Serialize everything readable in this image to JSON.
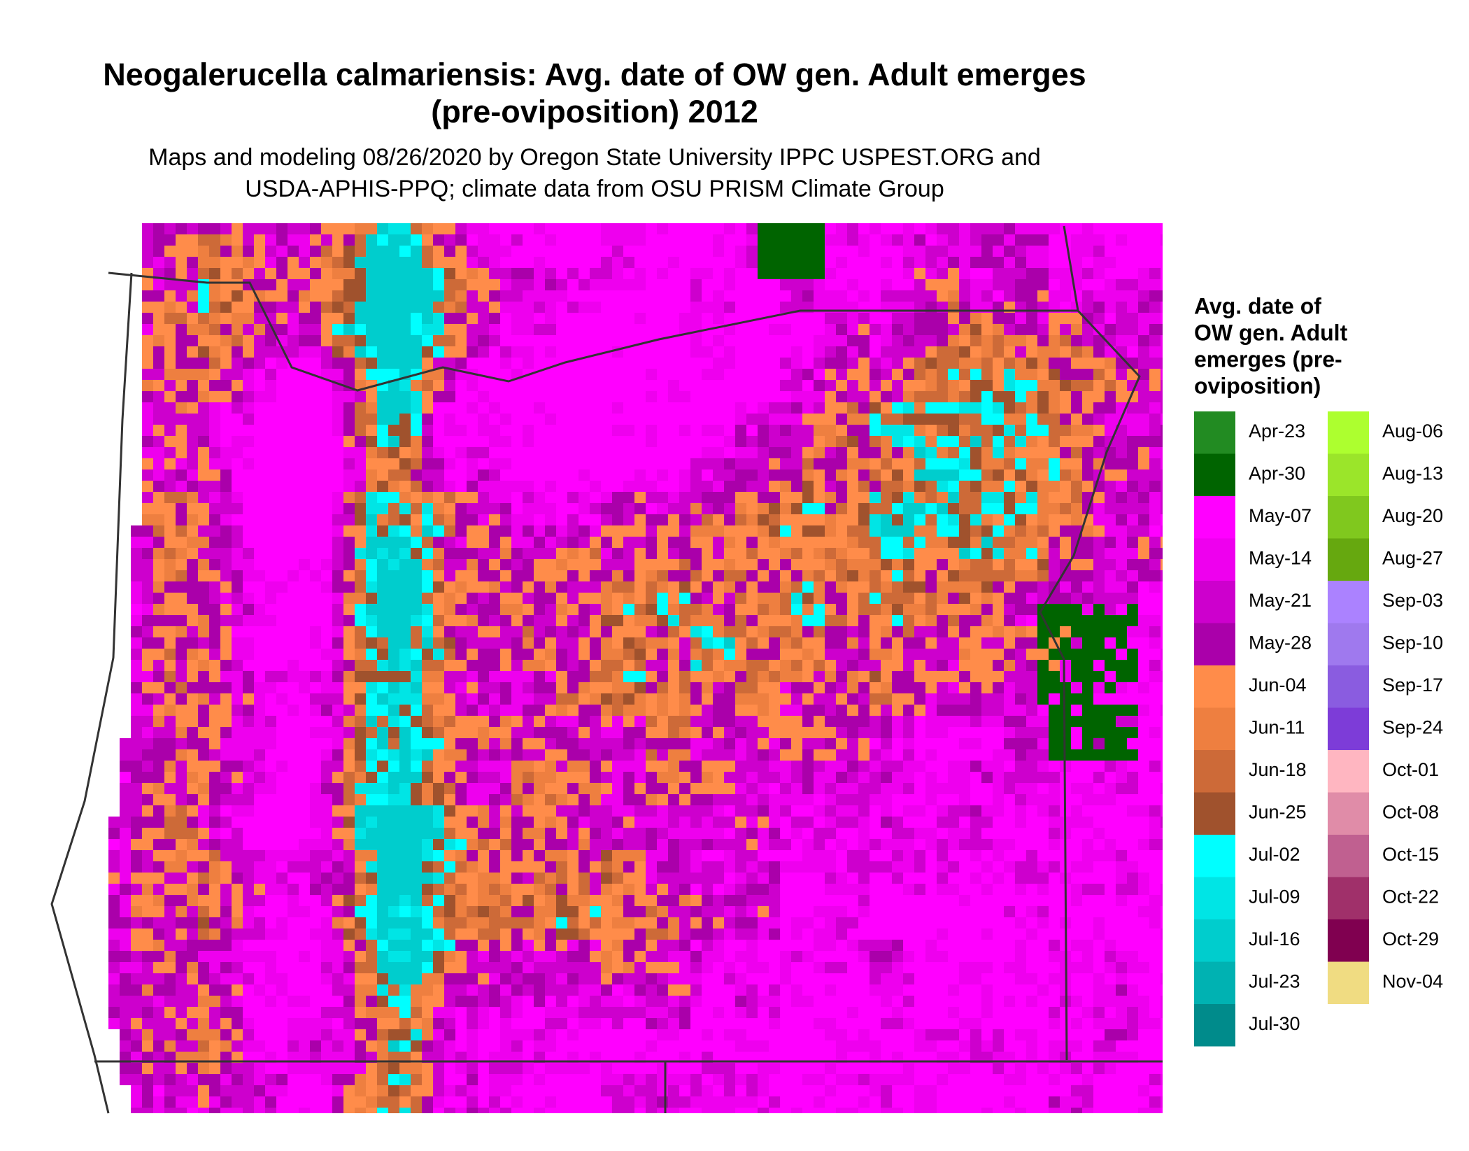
{
  "title": [
    "Neogalerucella calmariensis: Avg. date of OW gen. Adult emerges",
    "(pre-oviposition) 2012"
  ],
  "subtitle": [
    "Maps and modeling 08/26/2020 by Oregon State University IPPC USPEST.ORG and",
    "USDA-APHIS-PPQ; climate data from OSU PRISM Climate Group"
  ],
  "legend": {
    "title": [
      "Avg. date of",
      "OW gen. Adult",
      "emerges (pre-",
      "oviposition)"
    ],
    "items": [
      {
        "label": "Apr-23",
        "color": "#228b22"
      },
      {
        "label": "Apr-30",
        "color": "#006400"
      },
      {
        "label": "May-07",
        "color": "#ff00ff"
      },
      {
        "label": "May-14",
        "color": "#ee00ee"
      },
      {
        "label": "May-21",
        "color": "#cd00cd"
      },
      {
        "label": "May-28",
        "color": "#aa00aa"
      },
      {
        "label": "Jun-04",
        "color": "#ff8c4a"
      },
      {
        "label": "Jun-11",
        "color": "#ee7f40"
      },
      {
        "label": "Jun-18",
        "color": "#cd6a38"
      },
      {
        "label": "Jun-25",
        "color": "#a0522d"
      },
      {
        "label": "Jul-02",
        "color": "#00ffff"
      },
      {
        "label": "Jul-09",
        "color": "#00e5e5"
      },
      {
        "label": "Jul-16",
        "color": "#00cdcd"
      },
      {
        "label": "Jul-23",
        "color": "#00b2b2"
      },
      {
        "label": "Jul-30",
        "color": "#008b8b"
      },
      {
        "label": "Aug-06",
        "color": "#adff2f"
      },
      {
        "label": "Aug-13",
        "color": "#9be52a"
      },
      {
        "label": "Aug-20",
        "color": "#80c81e"
      },
      {
        "label": "Aug-27",
        "color": "#66a80f"
      },
      {
        "label": "Sep-03",
        "color": "#ab82ff"
      },
      {
        "label": "Sep-10",
        "color": "#9f79ee"
      },
      {
        "label": "Sep-17",
        "color": "#8a5ce0"
      },
      {
        "label": "Sep-24",
        "color": "#7d3cd8"
      },
      {
        "label": "Oct-01",
        "color": "#ffb6c1"
      },
      {
        "label": "Oct-08",
        "color": "#e08ca8"
      },
      {
        "label": "Oct-15",
        "color": "#c06090"
      },
      {
        "label": "Oct-22",
        "color": "#a0306a"
      },
      {
        "label": "Oct-29",
        "color": "#800050"
      },
      {
        "label": "Nov-04",
        "color": "#f0dc82"
      }
    ]
  }
}
